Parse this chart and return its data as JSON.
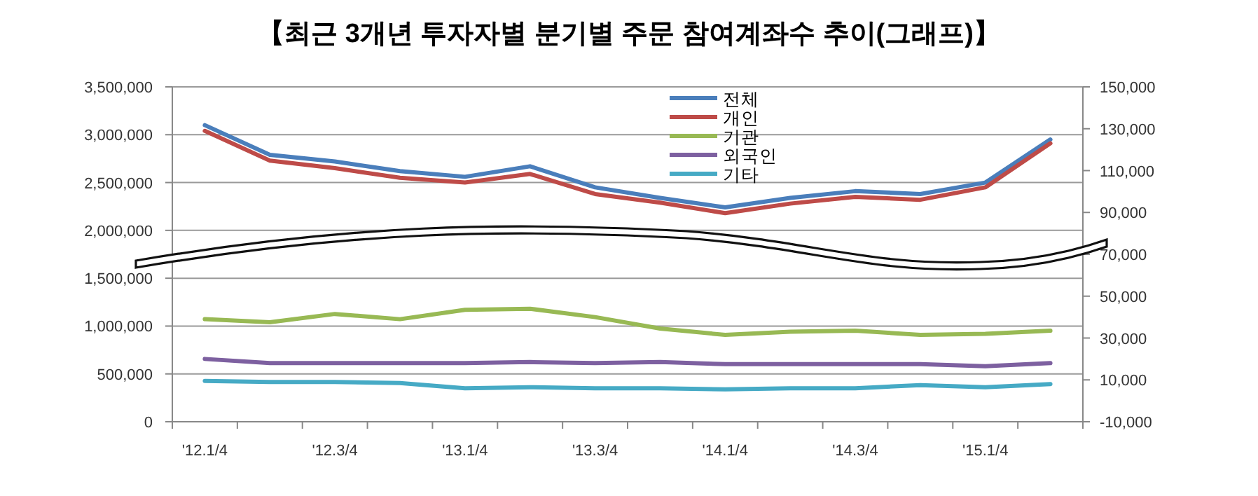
{
  "chart_data": {
    "type": "line",
    "title": "【최근 3개년 투자자별 분기별 주문 참여계좌수 추이(그래프)】",
    "categories": [
      "'12.1/4",
      null,
      "'12.3/4",
      null,
      "'13.1/4",
      null,
      "'13.3/4",
      null,
      "'14.1/4",
      null,
      "'14.3/4",
      null,
      "'15.1/4",
      null
    ],
    "series": [
      {
        "name": "전체",
        "color": "#4a7ebb",
        "values": [
          3100000,
          2790000,
          2720000,
          2620000,
          2560000,
          2670000,
          2450000,
          2340000,
          2240000,
          2340000,
          2410000,
          2380000,
          2500000,
          2950000
        ]
      },
      {
        "name": "개인",
        "color": "#be4b48",
        "values": [
          3040000,
          2730000,
          2650000,
          2550000,
          2500000,
          2590000,
          2380000,
          2290000,
          2180000,
          2280000,
          2350000,
          2320000,
          2450000,
          2910000
        ]
      },
      {
        "name": "기관",
        "color": "#98b954",
        "axis": "y2",
        "values": [
          39000,
          37500,
          41500,
          39000,
          43500,
          44000,
          40000,
          34500,
          31500,
          33000,
          33500,
          31500,
          32000,
          33500
        ]
      },
      {
        "name": "외국인",
        "color": "#7d60a0",
        "axis": "y2",
        "values": [
          20000,
          18000,
          18000,
          18000,
          18000,
          18500,
          18000,
          18500,
          17500,
          17500,
          17500,
          17500,
          16500,
          18000
        ]
      },
      {
        "name": "기타",
        "color": "#46aac5",
        "axis": "y2",
        "values": [
          9500,
          9000,
          9000,
          8500,
          6000,
          6500,
          6000,
          6000,
          5500,
          6000,
          6000,
          7500,
          6500,
          8000
        ]
      }
    ],
    "ylim": [
      0,
      3500000
    ],
    "yticks": [
      {
        "value": 0,
        "label": "0"
      },
      {
        "value": 500000,
        "label": "500,000"
      },
      {
        "value": 1000000,
        "label": "1,000,000"
      },
      {
        "value": 1500000,
        "label": "1,500,000"
      },
      {
        "value": 2000000,
        "label": "2,000,000"
      },
      {
        "value": 2500000,
        "label": "2,500,000"
      },
      {
        "value": 3000000,
        "label": "3,000,000"
      },
      {
        "value": 3500000,
        "label": "3,500,000"
      }
    ],
    "y2lim": [
      -10000,
      150000
    ],
    "y2ticks": [
      {
        "value": -10000,
        "label": "-10,000"
      },
      {
        "value": 10000,
        "label": "10,000"
      },
      {
        "value": 30000,
        "label": "30,000"
      },
      {
        "value": 50000,
        "label": "50,000"
      },
      {
        "value": 70000,
        "label": "70,000"
      },
      {
        "value": 90000,
        "label": "90,000"
      },
      {
        "value": 110000,
        "label": "110,000"
      },
      {
        "value": 130000,
        "label": "130,000"
      },
      {
        "value": 150000,
        "label": "150,000"
      }
    ],
    "grid": "y",
    "legend": "top",
    "marker": "none",
    "line_style": "solid"
  }
}
